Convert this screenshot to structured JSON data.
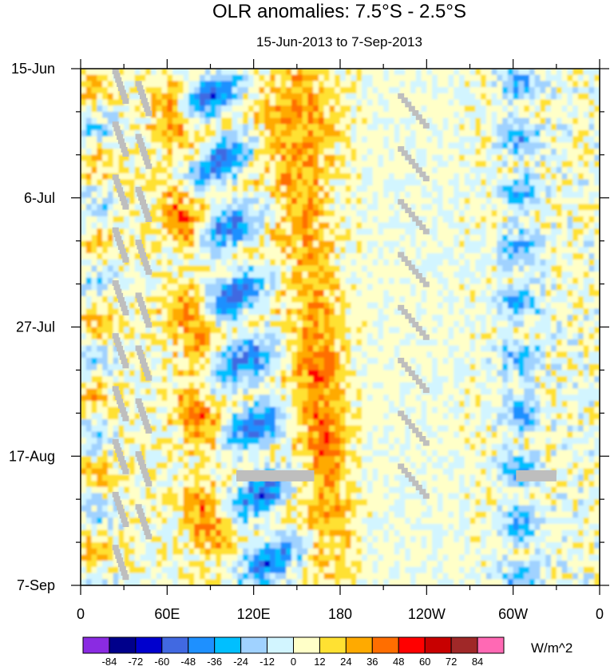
{
  "chart_data": {
    "type": "heatmap",
    "title": "OLR anomalies: 7.5°S - 2.5°S",
    "subtitle": "15-Jun-2013 to 7-Sep-2013",
    "xlabel": "",
    "ylabel": "",
    "x_ticks": [
      {
        "lon": 0,
        "label": "0"
      },
      {
        "lon": 60,
        "label": "60E"
      },
      {
        "lon": 120,
        "label": "120E"
      },
      {
        "lon": 180,
        "label": "180"
      },
      {
        "lon": 240,
        "label": "120W"
      },
      {
        "lon": 300,
        "label": "60W"
      },
      {
        "lon": 360,
        "label": "0"
      }
    ],
    "y_ticks": [
      {
        "day": 0,
        "label": "15-Jun"
      },
      {
        "day": 21,
        "label": "6-Jul"
      },
      {
        "day": 42,
        "label": "27-Jul"
      },
      {
        "day": 63,
        "label": "17-Aug"
      },
      {
        "day": 84,
        "label": "7-Sep"
      }
    ],
    "xlim": [
      0,
      360
    ],
    "ylim_days": [
      0,
      84
    ],
    "colorbar": {
      "unit_label": "W/m^2",
      "levels": [
        "-84",
        "-72",
        "-60",
        "-48",
        "-36",
        "-24",
        "-12",
        "0",
        "12",
        "24",
        "36",
        "48",
        "60",
        "72",
        "84"
      ],
      "colors": [
        "#8a2be2",
        "#00008b",
        "#0000cd",
        "#4169e1",
        "#1e90ff",
        "#00bfff",
        "#a0d2ff",
        "#d2f5ff",
        "#ffffc8",
        "#ffe132",
        "#ffaa00",
        "#ff6e00",
        "#ff0000",
        "#c80000",
        "#a02828",
        "#ff69b4"
      ]
    },
    "features": [
      {
        "kind": "negative-band",
        "lon_start": 80,
        "lon_end": 120,
        "day_start": 8,
        "day_end": 60,
        "note": "eastward tilt"
      },
      {
        "kind": "positive-band",
        "lon_start": 55,
        "lon_end": 95,
        "day_start": 0,
        "day_end": 84
      },
      {
        "kind": "positive-band",
        "lon_start": 150,
        "lon_end": 185,
        "day_start": 35,
        "day_end": 75
      },
      {
        "kind": "negative-band",
        "lon_start": 285,
        "lon_end": 325,
        "day_start": 5,
        "day_end": 84
      }
    ]
  }
}
